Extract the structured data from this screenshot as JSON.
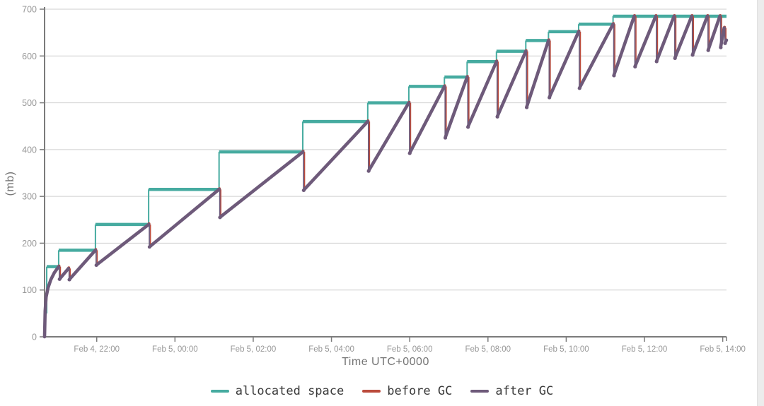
{
  "chart_data": {
    "type": "line",
    "title": "",
    "xlabel": "Time UTC+0000",
    "ylabel": "(mb)",
    "grid": "horizontal",
    "legend_position": "bottom",
    "y_range": [
      0,
      700
    ],
    "y_ticks": [
      0,
      100,
      200,
      300,
      400,
      500,
      600,
      700
    ],
    "x_range_hours": [
      0,
      17.43
    ],
    "x_ticks": [
      {
        "t": 1.333,
        "label": "Feb 4, 22:00"
      },
      {
        "t": 3.333,
        "label": "Feb 5, 00:00"
      },
      {
        "t": 5.333,
        "label": "Feb 5, 02:00"
      },
      {
        "t": 7.333,
        "label": "Feb 5, 04:00"
      },
      {
        "t": 9.333,
        "label": "Feb 5, 06:00"
      },
      {
        "t": 11.333,
        "label": "Feb 5, 08:00"
      },
      {
        "t": 13.333,
        "label": "Feb 5, 10:00"
      },
      {
        "t": 15.333,
        "label": "Feb 5, 12:00"
      },
      {
        "t": 17.333,
        "label": "Feb 5, 14:00"
      }
    ],
    "legend": [
      {
        "label": "allocated space",
        "color": "#46aba0"
      },
      {
        "label": "before GC",
        "color": "#bb4b3c"
      },
      {
        "label": "after GC",
        "color": "#6e5a7a"
      }
    ],
    "colors": {
      "allocated": "#46aba0",
      "before_gc": "#bb4b3c",
      "after_gc": "#6e5a7a",
      "grid": "#cfcfcf",
      "axis": "#7b7b7b",
      "tick_text": "#979797",
      "axis_title": "#757575",
      "legend_text": "#3a3a3a",
      "page_edge": "#ececec"
    },
    "series": {
      "allocated_space_steps": [
        [
          0,
          25
        ],
        [
          0.025,
          50
        ],
        [
          0.055,
          150
        ],
        [
          0.36,
          185
        ],
        [
          1.3,
          240
        ],
        [
          2.66,
          315
        ],
        [
          4.46,
          395
        ],
        [
          6.6,
          460
        ],
        [
          8.26,
          500
        ],
        [
          9.31,
          535
        ],
        [
          10.22,
          555
        ],
        [
          10.8,
          588
        ],
        [
          11.55,
          610
        ],
        [
          12.3,
          633
        ],
        [
          12.88,
          652
        ],
        [
          13.65,
          668
        ],
        [
          14.53,
          685
        ]
      ],
      "initial_rise": [
        [
          0,
          0
        ],
        [
          0.015,
          55
        ],
        [
          0.04,
          85
        ],
        [
          0.09,
          105
        ],
        [
          0.16,
          122
        ],
        [
          0.25,
          137
        ]
      ],
      "gc_events": [
        {
          "t": 0.36,
          "peak": 150,
          "trough": 123
        },
        {
          "t": 0.61,
          "peak": 146,
          "trough": 122
        },
        {
          "t": 1.3,
          "peak": 185,
          "trough": 153
        },
        {
          "t": 2.66,
          "peak": 240,
          "trough": 192
        },
        {
          "t": 4.46,
          "peak": 315,
          "trough": 255
        },
        {
          "t": 6.6,
          "peak": 395,
          "trough": 313
        },
        {
          "t": 8.26,
          "peak": 460,
          "trough": 354
        },
        {
          "t": 9.31,
          "peak": 500,
          "trough": 392
        },
        {
          "t": 10.22,
          "peak": 535,
          "trough": 425
        },
        {
          "t": 10.8,
          "peak": 555,
          "trough": 448
        },
        {
          "t": 11.55,
          "peak": 588,
          "trough": 470
        },
        {
          "t": 12.3,
          "peak": 610,
          "trough": 490
        },
        {
          "t": 12.88,
          "peak": 633,
          "trough": 511
        },
        {
          "t": 13.65,
          "peak": 652,
          "trough": 531
        },
        {
          "t": 14.53,
          "peak": 668,
          "trough": 558
        },
        {
          "t": 15.07,
          "peak": 685,
          "trough": 577
        },
        {
          "t": 15.62,
          "peak": 685,
          "trough": 588
        },
        {
          "t": 16.09,
          "peak": 685,
          "trough": 595
        },
        {
          "t": 16.54,
          "peak": 685,
          "trough": 602
        },
        {
          "t": 16.94,
          "peak": 685,
          "trough": 612
        },
        {
          "t": 17.26,
          "peak": 685,
          "trough": 618
        },
        {
          "t": 17.37,
          "peak": 660,
          "trough": 627
        }
      ],
      "tail_end": [
        17.43,
        634
      ]
    }
  }
}
